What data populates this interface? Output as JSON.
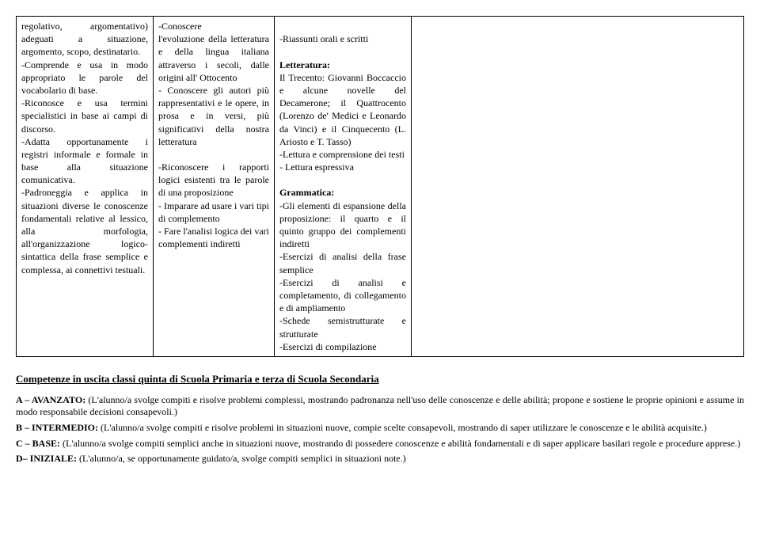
{
  "table": {
    "col1": {
      "p1": "regolativo, argomentativo) adeguati a situazione, argomento, scopo, destinatario.",
      "p2": "-Comprende e usa in modo appropriato le parole del vocabolario di base.",
      "p3": "-Riconosce e usa termini specialistici in base ai campi di discorso.",
      "p4": "-Adatta opportunamente i registri informale e formale in base alla situazione comunicativa.",
      "p5": "-Padroneggia e applica in situazioni diverse le conoscenze fondamentali relative al lessico, alla morfologia, all'organizzazione logico-sintattica della frase semplice e complessa, ai connettivi testuali."
    },
    "col2": {
      "p1a": "-Conoscere",
      "p1b": "l'evoluzione della letteratura e della lingua italiana attraverso i secoli, dalle origini all' Ottocento",
      "p2": "- Conoscere gli autori più rappresentativi e le opere, in prosa e in versi, più significativi della nostra letteratura",
      "p3": "-Riconoscere i rapporti logici esistenti tra le parole di una proposizione",
      "p4": "- Imparare ad usare i vari tipi di complemento",
      "p5": "- Fare l'analisi logica dei vari complementi indiretti"
    },
    "col3": {
      "p1": "-Riassunti orali e scritti",
      "lit_h": "Letteratura:",
      "lit_p1": "Il Trecento: Giovanni Boccaccio e alcune novelle del Decamerone; il Quattrocento (Lorenzo de' Medici e Leonardo da Vinci) e il Cinquecento (L. Ariosto e T. Tasso)",
      "lit_p2": "-Lettura e comprensione dei testi",
      "lit_p3": "- Lettura espressiva",
      "gram_h": "Grammatica:",
      "gram_p1": "-Gli elementi di espansione della proposizione: il quarto e il quinto gruppo dei complementi indiretti",
      "gram_p2": "-Esercizi di analisi della frase semplice",
      "gram_p3": "-Esercizi di analisi e completamento, di collegamento e di ampliamento",
      "gram_p4": "-Schede semistrutturate e strutturate",
      "gram_p5": "-Esercizi di compilazione"
    }
  },
  "footer": {
    "title": "Competenze in uscita classi quinta di Scuola Primaria e terza di Scuola Secondaria",
    "a_label": "A – AVANZATO:",
    "a_text": " (L'alunno/a svolge compiti e risolve problemi complessi, mostrando padronanza nell'uso delle conoscenze e delle abilità; propone e sostiene le proprie opinioni e assume in modo responsabile decisioni consapevoli.)",
    "b_label": "B – INTERMEDIO:",
    "b_text": " (L'alunno/a svolge compiti e risolve problemi in situazioni nuove, compie scelte consapevoli, mostrando di saper utilizzare le conoscenze e le abilità acquisite.)",
    "c_label": "C – BASE:",
    "c_text": " (L'alunno/a svolge compiti semplici anche in situazioni nuove, mostrando di possedere conoscenze e abilità fondamentali e di saper applicare basilari regole e procedure apprese.)",
    "d_label": "D– INIZIALE:",
    "d_text": " (L'alunno/a, se opportunamente guidato/a, svolge compiti semplici in situazioni note.)"
  }
}
